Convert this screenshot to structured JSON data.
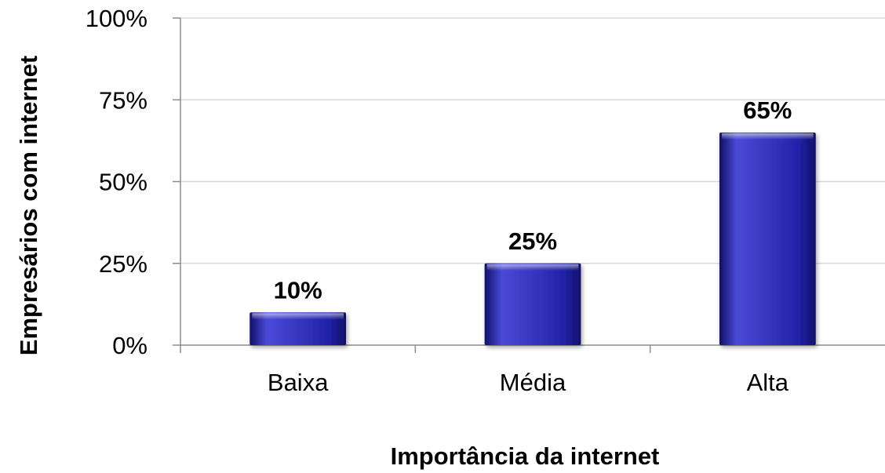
{
  "chart_data": {
    "type": "bar",
    "categories": [
      "Baixa",
      "Média",
      "Alta"
    ],
    "values": [
      10,
      25,
      65
    ],
    "data_labels": [
      "10%",
      "25%",
      "65%"
    ],
    "ylim": [
      0,
      100
    ],
    "yticks": [
      0,
      25,
      50,
      75,
      100
    ],
    "ytick_labels": [
      "0%",
      "25%",
      "50%",
      "75%",
      "100%"
    ],
    "xlabel": "Importância da internet",
    "ylabel": "Empresários com internet",
    "grid": true,
    "legend": "none",
    "colors": {
      "bar_light": "#4a4ad8",
      "bar_mid": "#2222a8",
      "bar_dark": "#101068",
      "grid": "#d9d9d9",
      "axis": "#8c8c8c"
    }
  }
}
